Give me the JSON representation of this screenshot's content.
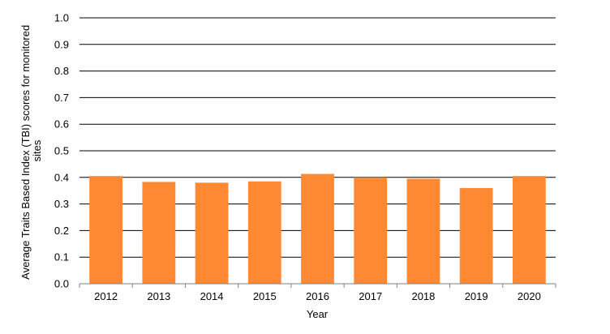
{
  "chart_data": {
    "type": "bar",
    "title": "",
    "xlabel": "Year",
    "ylabel_lines": [
      "Average Traits Based Index (TBI) scores for monitored",
      "sites"
    ],
    "categories": [
      "2012",
      "2013",
      "2014",
      "2015",
      "2016",
      "2017",
      "2018",
      "2019",
      "2020"
    ],
    "series": [
      {
        "values": [
          0.405,
          0.383,
          0.38,
          0.385,
          0.413,
          0.4,
          0.395,
          0.36,
          0.405
        ]
      }
    ],
    "ylim": [
      0,
      1.0
    ],
    "yticks": [
      "0.0",
      "0.1",
      "0.2",
      "0.3",
      "0.4",
      "0.5",
      "0.6",
      "0.7",
      "0.8",
      "0.9",
      "1.0"
    ],
    "grid": true,
    "legend": "none",
    "colors": {
      "bar": "#FF8833",
      "grid": "#000000",
      "axis": "#808080"
    }
  }
}
